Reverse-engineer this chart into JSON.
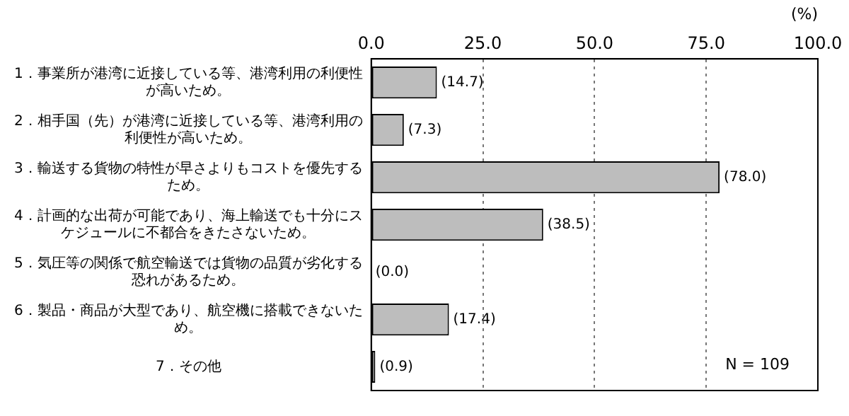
{
  "chart_data": {
    "type": "bar",
    "orientation": "horizontal",
    "xlabel": "(%)",
    "categories": [
      "1．事業所が港湾に近接している等、港湾利用の利便性が高いため。",
      "2．相手国（先）が港湾に近接している等、港湾利用の利便性が高いため。",
      "3．輸送する貨物の特性が早さよりもコストを優先するため。",
      "4．計画的な出荷が可能であり、海上輸送でも十分にスケジュールに不都合をきたさないため。",
      "5．気圧等の関係で航空輸送では貨物の品質が劣化する恐れがあるため。",
      "6．製品・商品が大型であり、航空機に搭載できないため。",
      "7．その他"
    ],
    "values": [
      14.7,
      7.3,
      78.0,
      38.5,
      0.0,
      17.4,
      0.9
    ],
    "value_labels": [
      "(14.7)",
      "(7.3)",
      "(78.0)",
      "(38.5)",
      "(0.0)",
      "(17.4)",
      "(0.9)"
    ],
    "color": "#bdbdbd",
    "xlim": [
      0,
      100
    ],
    "xticks": [
      {
        "value": 0,
        "label": "0.0"
      },
      {
        "value": 25,
        "label": "25.0"
      },
      {
        "value": 50,
        "label": "50.0"
      },
      {
        "value": 75,
        "label": "75.0"
      },
      {
        "value": 100,
        "label": "100.0"
      }
    ],
    "grid": "x",
    "legend": false,
    "annotations": [
      "N = 109"
    ]
  }
}
